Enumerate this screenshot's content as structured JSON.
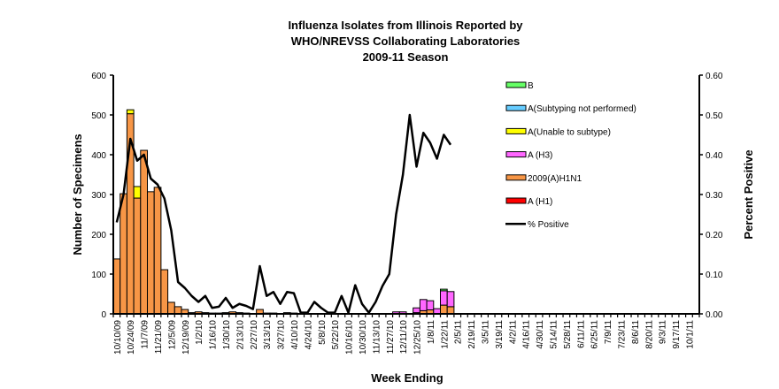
{
  "chart_data": {
    "type": "bar",
    "title": [
      "Influenza  Isolates from Illinois Reported by",
      "WHO/NREVSS Collaborating  Laboratories",
      "2009-11  Season"
    ],
    "xlabel": "Week Ending",
    "ylabel": "Number of Specimens",
    "y2label": "Percent Positive",
    "ylim": [
      0,
      600
    ],
    "y2lim": [
      0,
      0.6
    ],
    "yticks": [
      "0",
      "100",
      "200",
      "300",
      "400",
      "500",
      "600"
    ],
    "y2ticks": [
      "0.00",
      "0.10",
      "0.20",
      "0.30",
      "0.40",
      "0.50",
      "0.60"
    ],
    "n_weeks": 86,
    "xtick_labels": [
      "10/10/09",
      "10/24/09",
      "11/7/09",
      "11/21/09",
      "12/5/09",
      "12/19/09",
      "1/2/10",
      "1/16/10",
      "1/30/10",
      "2/13/10",
      "2/27/10",
      "3/13/10",
      "3/27/10",
      "4/10/10",
      "4/24/10",
      "5/8/10",
      "5/22/10",
      "10/16/10",
      "10/30/10",
      "11/13/10",
      "11/27/10",
      "12/11/10",
      "12/25/10",
      "1/8/11",
      "1/22/11",
      "2/5/11",
      "2/19/11",
      "3/5/11",
      "3/19/11",
      "4/2/11",
      "4/16/11",
      "4/30/11",
      "5/14/11",
      "5/28/11",
      "6/11/11",
      "6/25/11",
      "7/9/11",
      "7/23/11",
      "8/6/11",
      "8/20/11",
      "9/3/11",
      "9/17/11",
      "10/1/11"
    ],
    "series": [
      {
        "name": "A (H1)",
        "color": "#ff0000",
        "values": [
          0,
          0,
          0,
          0,
          0,
          0,
          0,
          0,
          0,
          0,
          0,
          0,
          0,
          0,
          0,
          0,
          0,
          0,
          0,
          0,
          0,
          0,
          0,
          0,
          0,
          0,
          0,
          0,
          0,
          0,
          0,
          0,
          0,
          0,
          0,
          0,
          0,
          0,
          0,
          0,
          0,
          0,
          0,
          0,
          0,
          0,
          0,
          0,
          0,
          0,
          0,
          0,
          0,
          0,
          0,
          0,
          0,
          0,
          0,
          0,
          0,
          0,
          0,
          0,
          0,
          0,
          0,
          0,
          0,
          0,
          0,
          0,
          0,
          0,
          0,
          0,
          0,
          0,
          0,
          0,
          0,
          0,
          0,
          0,
          0,
          0
        ]
      },
      {
        "name": "2009(A)H1N1",
        "color": "#f79646",
        "values": [
          138,
          302,
          503,
          291,
          411,
          307,
          318,
          111,
          29,
          18,
          11,
          3,
          5,
          3,
          2,
          2,
          3,
          5,
          3,
          2,
          0,
          11,
          2,
          2,
          0,
          3,
          2,
          0,
          0,
          0,
          0,
          0,
          0,
          0,
          0,
          0,
          0,
          0,
          0,
          0,
          0,
          0,
          0,
          0,
          3,
          8,
          10,
          0,
          22,
          18,
          0,
          0,
          0,
          0,
          0,
          0,
          0,
          0,
          0,
          0,
          0,
          0,
          0,
          0,
          0,
          0,
          0,
          0,
          0,
          0,
          0,
          0,
          0,
          0,
          0,
          0,
          0,
          0,
          0,
          0,
          0,
          0,
          0,
          0,
          0,
          0
        ]
      },
      {
        "name": "A (H3)",
        "color": "#ff66ff",
        "values": [
          0,
          0,
          0,
          0,
          0,
          0,
          0,
          0,
          0,
          0,
          0,
          0,
          0,
          0,
          0,
          0,
          0,
          0,
          0,
          0,
          0,
          0,
          0,
          0,
          0,
          0,
          0,
          0,
          0,
          0,
          0,
          0,
          0,
          0,
          0,
          0,
          0,
          0,
          0,
          0,
          0,
          5,
          5,
          0,
          12,
          28,
          23,
          13,
          36,
          38,
          0,
          0,
          0,
          0,
          0,
          0,
          0,
          0,
          0,
          0,
          0,
          0,
          0,
          0,
          0,
          0,
          0,
          0,
          0,
          0,
          0,
          0,
          0,
          0,
          0,
          0,
          0,
          0,
          0,
          0,
          0,
          0,
          0,
          0,
          0,
          0
        ]
      },
      {
        "name": "A(Unable to subtype)",
        "color": "#ffff00",
        "values": [
          0,
          0,
          10,
          29,
          0,
          0,
          0,
          0,
          0,
          0,
          0,
          0,
          0,
          0,
          0,
          0,
          0,
          0,
          0,
          0,
          0,
          0,
          0,
          0,
          0,
          0,
          0,
          0,
          0,
          0,
          0,
          0,
          0,
          0,
          0,
          0,
          0,
          0,
          0,
          0,
          0,
          0,
          0,
          0,
          0,
          0,
          0,
          0,
          0,
          0,
          0,
          0,
          0,
          0,
          0,
          0,
          0,
          0,
          0,
          0,
          0,
          0,
          0,
          0,
          0,
          0,
          0,
          0,
          0,
          0,
          0,
          0,
          0,
          0,
          0,
          0,
          0,
          0,
          0,
          0,
          0,
          0,
          0,
          0,
          0,
          0
        ]
      },
      {
        "name": "A(Subtyping not performed)",
        "color": "#66ccff",
        "values": [
          0,
          0,
          0,
          0,
          0,
          0,
          0,
          0,
          0,
          0,
          0,
          0,
          0,
          0,
          0,
          0,
          0,
          0,
          0,
          0,
          0,
          0,
          0,
          0,
          0,
          0,
          0,
          0,
          0,
          0,
          0,
          0,
          0,
          0,
          0,
          0,
          0,
          0,
          0,
          0,
          0,
          0,
          0,
          0,
          0,
          0,
          0,
          0,
          0,
          0,
          0,
          0,
          0,
          0,
          0,
          0,
          0,
          0,
          0,
          0,
          0,
          0,
          0,
          0,
          0,
          0,
          0,
          0,
          0,
          0,
          0,
          0,
          0,
          0,
          0,
          0,
          0,
          0,
          0,
          0,
          0,
          0,
          0,
          0,
          0,
          0
        ]
      },
      {
        "name": "B",
        "color": "#66ff66",
        "values": [
          0,
          0,
          0,
          0,
          0,
          0,
          0,
          0,
          0,
          0,
          0,
          0,
          0,
          0,
          0,
          0,
          0,
          0,
          0,
          0,
          0,
          0,
          0,
          0,
          0,
          0,
          0,
          0,
          0,
          0,
          0,
          0,
          0,
          0,
          0,
          0,
          0,
          0,
          0,
          0,
          0,
          0,
          0,
          0,
          0,
          0,
          0,
          0,
          4,
          0,
          0,
          0,
          0,
          0,
          0,
          0,
          0,
          0,
          0,
          0,
          0,
          0,
          0,
          0,
          0,
          0,
          0,
          0,
          0,
          0,
          0,
          0,
          0,
          0,
          0,
          0,
          0,
          0,
          0,
          0,
          0,
          0,
          0,
          0,
          0,
          0
        ]
      }
    ],
    "line": {
      "name": "% Positive",
      "color": "#000000",
      "values": [
        0.23,
        0.3,
        0.44,
        0.385,
        0.4,
        0.34,
        0.325,
        0.29,
        0.21,
        0.08,
        0.065,
        0.045,
        0.03,
        0.045,
        0.015,
        0.018,
        0.04,
        0.015,
        0.025,
        0.02,
        0.012,
        0.12,
        0.045,
        0.055,
        0.025,
        0.055,
        0.052,
        0.003,
        0.003,
        0.03,
        0.015,
        0.003,
        0.003,
        0.045,
        0.003,
        0.072,
        0.025,
        0.003,
        0.03,
        0.07,
        0.1,
        0.25,
        0.35,
        0.5,
        0.37,
        0.455,
        0.43,
        0.39,
        0.45,
        0.425
      ]
    },
    "legend_order": [
      "B",
      "A(Subtyping not performed)",
      "A(Unable to subtype)",
      "A (H3)",
      "2009(A)H1N1",
      "A (H1)",
      "% Positive"
    ],
    "legend_placement": "top-right"
  }
}
